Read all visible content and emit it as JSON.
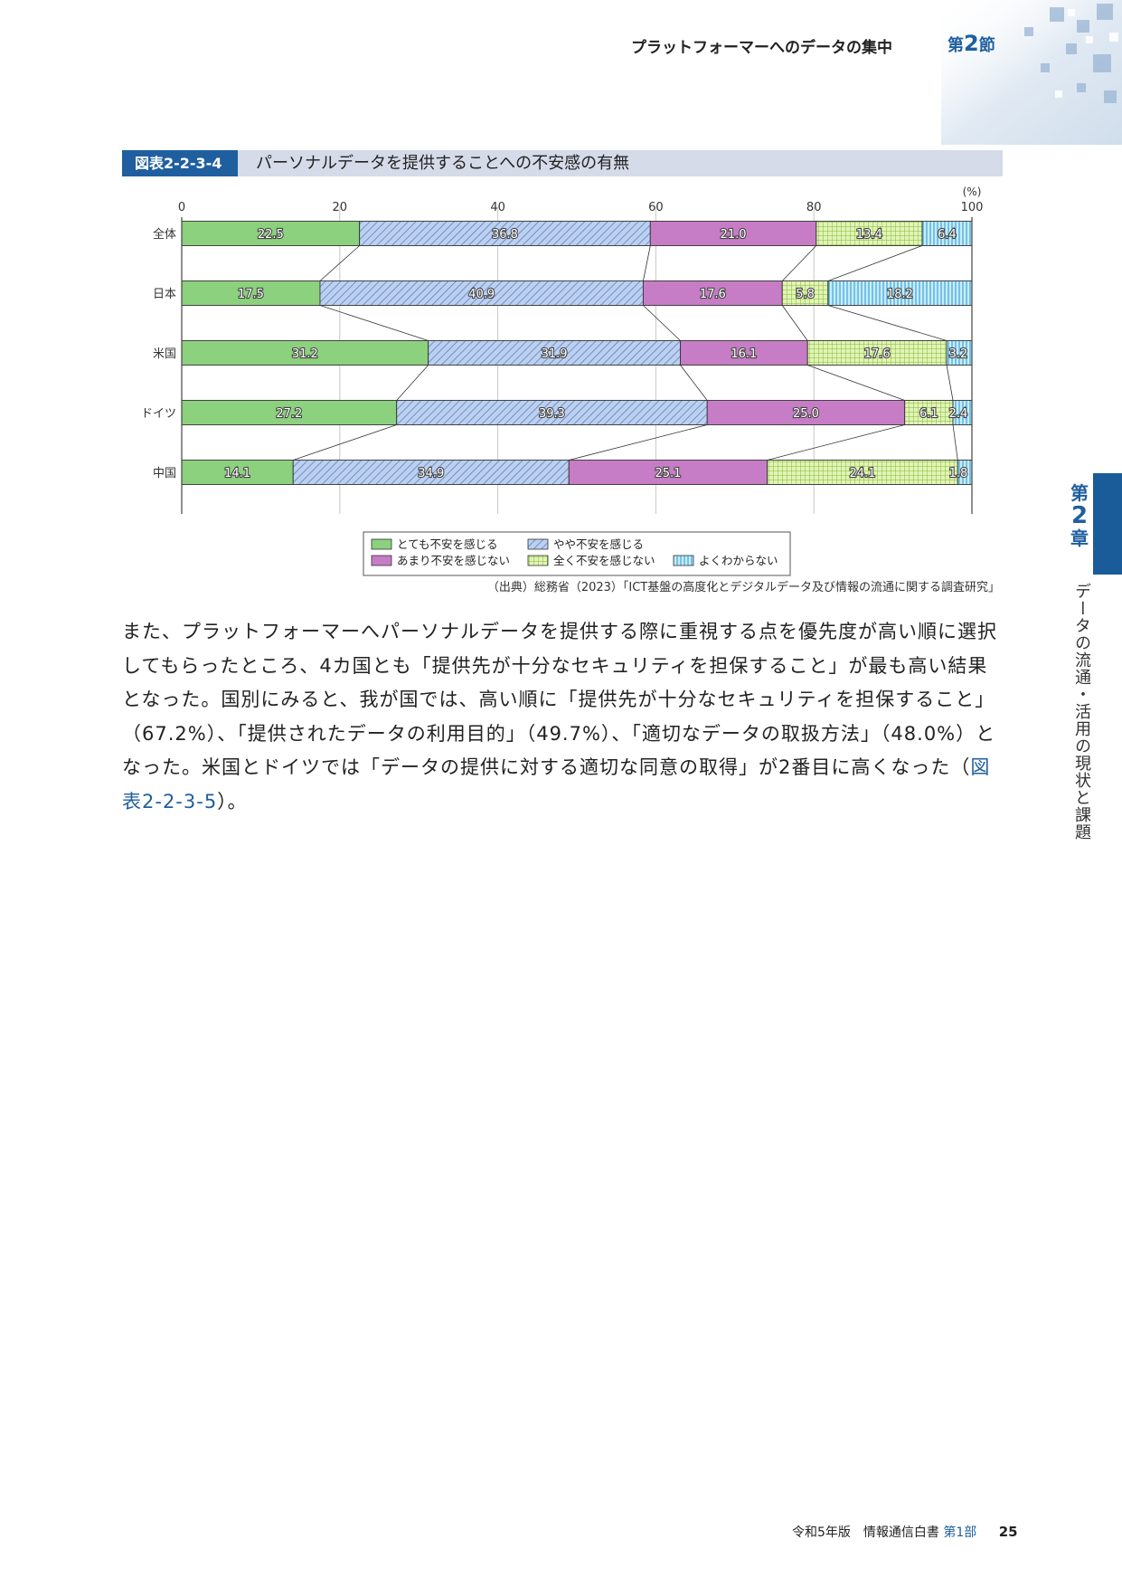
{
  "header": {
    "section_title": "プラットフォーマーへのデータの集中",
    "section_prefix": "第",
    "section_number": "2",
    "section_suffix": "節"
  },
  "side": {
    "chapter_prefix": "第",
    "chapter_number": "2",
    "chapter_suffix": "章",
    "chapter_title": "データの流通・活用の現状と課題"
  },
  "figure": {
    "label": "図表2-2-3-4",
    "title": "パーソナルデータを提供することへの不安感の有無",
    "source": "（出典）総務省（2023）「ICT基盤の高度化とデジタルデータ及び情報の流通に関する調査研究」"
  },
  "chart_data": {
    "type": "bar",
    "orientation": "horizontal-stacked-100",
    "unit": "(%)",
    "xlim": [
      0,
      100
    ],
    "x_ticks": [
      "0",
      "20",
      "40",
      "60",
      "80",
      "100"
    ],
    "categories": [
      "全体",
      "日本",
      "米国",
      "ドイツ",
      "中国"
    ],
    "series": [
      {
        "name": "とても不安を感じる",
        "color": "#8cd17d",
        "pattern": "solid",
        "values": [
          22.5,
          17.5,
          31.2,
          27.2,
          14.1
        ]
      },
      {
        "name": "やや不安を感じる",
        "color": "#a9c4ea",
        "pattern": "diagonal",
        "values": [
          36.8,
          40.9,
          31.9,
          39.3,
          34.9
        ]
      },
      {
        "name": "あまり不安を感じない",
        "color": "#c77cc6",
        "pattern": "solid",
        "values": [
          21.0,
          17.6,
          16.1,
          25.0,
          25.1
        ]
      },
      {
        "name": "全く不安を感じない",
        "color": "#d7ee9a",
        "pattern": "grid",
        "values": [
          13.4,
          5.8,
          17.6,
          6.1,
          24.1
        ]
      },
      {
        "name": "よくわからない",
        "color": "#a7dcf2",
        "pattern": "vertical",
        "values": [
          6.4,
          18.2,
          3.2,
          2.4,
          1.8
        ]
      }
    ],
    "value_labels": [
      [
        "22.5",
        "36.8",
        "21.0",
        "13.4",
        "6.4"
      ],
      [
        "17.5",
        "40.9",
        "17.6",
        "5.8",
        "18.2"
      ],
      [
        "31.2",
        "31.9",
        "16.1",
        "17.6",
        "3.2"
      ],
      [
        "27.2",
        "39.3",
        "25.0",
        "6.1",
        "2.4"
      ],
      [
        "14.1",
        "34.9",
        "25.1",
        "24.1",
        "1.8"
      ]
    ],
    "grid": true,
    "legend_position": "bottom"
  },
  "body": {
    "paragraph": "また、プラットフォーマーへパーソナルデータを提供する際に重視する点を優先度が高い順に選択してもらったところ、4カ国とも「提供先が十分なセキュリティを担保すること」が最も高い結果となった。国別にみると、我が国では、高い順に「提供先が十分なセキュリティを担保すること」（67.2%）、「提供されたデータの利用目的」（49.7%）、「適切なデータの取扱方法」（48.0%）となった。米国とドイツでは「データの提供に対する適切な同意の取得」が2番目に高くなった（",
    "ref": "図表2-2-3-5",
    "tail": "）。"
  },
  "footer": {
    "edition": "令和5年版　情報通信白書",
    "part": "第1部",
    "page": "25"
  }
}
